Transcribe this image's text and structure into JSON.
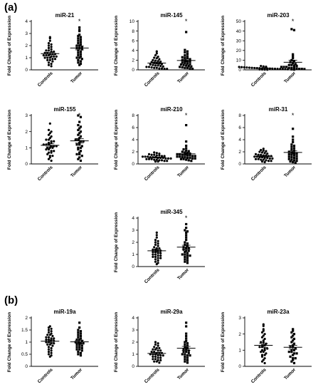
{
  "panels": [
    "(a)",
    "(b)"
  ],
  "chart_data": [
    {
      "type": "scatter",
      "title": "miR-21",
      "ylabel": "Fold Change of Expression",
      "categories": [
        "Controls",
        "Tumor"
      ],
      "ylim": [
        0,
        4
      ],
      "yticks": [
        0,
        1,
        2,
        3,
        4
      ],
      "significance": [
        "",
        "*"
      ],
      "series": [
        {
          "values": [
            2.7,
            2.6,
            2.4,
            2.2,
            2.1,
            2.0,
            1.9,
            1.8,
            1.7,
            1.6,
            1.6,
            1.5,
            1.5,
            1.4,
            1.4,
            1.3,
            1.3,
            1.3,
            1.2,
            1.2,
            1.2,
            1.1,
            1.1,
            1.1,
            1.0,
            1.0,
            1.0,
            0.9,
            0.9,
            0.8,
            0.8,
            0.7,
            0.6,
            0.5,
            0.4,
            0.3
          ]
        },
        {
          "values": [
            3.5,
            3.3,
            3.2,
            2.9,
            2.8,
            2.7,
            2.6,
            2.5,
            2.4,
            2.3,
            2.2,
            2.1,
            2.0,
            2.0,
            1.9,
            1.8,
            1.8,
            1.7,
            1.6,
            1.5,
            1.4,
            1.3,
            1.2,
            1.1,
            1.0,
            1.0,
            0.9,
            0.8,
            0.7,
            0.6,
            0.5,
            0.4
          ]
        }
      ]
    },
    {
      "type": "scatter",
      "title": "miR-145",
      "ylabel": "Fold Change of Expression",
      "categories": [
        "Controls",
        "Tumor"
      ],
      "ylim": [
        0,
        10
      ],
      "yticks": [
        0,
        2,
        4,
        6,
        8,
        10
      ],
      "significance": [
        "",
        "*"
      ],
      "series": [
        {
          "values": [
            3.8,
            3.4,
            3.0,
            2.7,
            2.5,
            2.4,
            2.2,
            2.0,
            1.9,
            1.8,
            1.7,
            1.6,
            1.5,
            1.4,
            1.3,
            1.2,
            1.1,
            1.0,
            0.9,
            0.9,
            0.8,
            0.7,
            0.6,
            0.6,
            0.5,
            0.4,
            0.4,
            0.3,
            0.3,
            0.2,
            0.2
          ]
        },
        {
          "values": [
            7.8,
            4.1,
            3.8,
            3.6,
            3.3,
            3.0,
            2.8,
            2.6,
            2.5,
            2.4,
            2.2,
            2.0,
            1.9,
            1.8,
            1.7,
            1.5,
            1.4,
            1.3,
            1.2,
            1.1,
            1.0,
            0.9,
            0.8,
            0.7,
            0.6,
            0.5,
            0.4,
            0.4,
            0.3,
            0.2
          ]
        }
      ]
    },
    {
      "type": "scatter",
      "title": "miR-203",
      "ylabel": "Fold Change of Expression",
      "categories": [
        "Controls",
        "Tumor"
      ],
      "ylim": [
        0,
        50
      ],
      "yticks": [
        0,
        10,
        20,
        30,
        40,
        50
      ],
      "significance": [
        "",
        "*"
      ],
      "series": [
        {
          "values": [
            4.0,
            3.5,
            3.2,
            3.0,
            2.8,
            2.6,
            2.4,
            2.2,
            2.0,
            1.9,
            1.8,
            1.7,
            1.6,
            1.5,
            1.4,
            1.3,
            1.2,
            1.1,
            1.0,
            0.9,
            0.8,
            0.7,
            0.6,
            0.5,
            0.4,
            0.3,
            0.2
          ]
        },
        {
          "values": [
            42,
            41,
            16,
            14,
            12,
            10,
            9,
            8,
            7,
            6,
            5,
            5,
            4,
            4,
            3,
            3,
            3,
            2,
            2,
            2,
            1.5,
            1,
            1,
            0.8,
            0.5,
            0.3
          ]
        }
      ]
    },
    {
      "type": "scatter",
      "title": "miR-155",
      "ylabel": "Fold Change of Expression",
      "categories": [
        "Controls",
        "Tumor"
      ],
      "ylim": [
        0,
        3
      ],
      "yticks": [
        0,
        1,
        2,
        3
      ],
      "significance": [
        "",
        "*"
      ],
      "series": [
        {
          "values": [
            2.5,
            2.1,
            2.0,
            1.9,
            1.8,
            1.7,
            1.6,
            1.5,
            1.5,
            1.4,
            1.4,
            1.3,
            1.3,
            1.2,
            1.2,
            1.2,
            1.1,
            1.1,
            1.1,
            1.0,
            1.0,
            1.0,
            0.9,
            0.9,
            0.8,
            0.8,
            0.7,
            0.7,
            0.6,
            0.5,
            0.5,
            0.4,
            0.3,
            0.2
          ]
        },
        {
          "values": [
            3.2,
            2.9,
            2.6,
            2.4,
            2.3,
            2.2,
            2.1,
            2.0,
            1.9,
            1.8,
            1.7,
            1.6,
            1.5,
            1.5,
            1.4,
            1.4,
            1.3,
            1.2,
            1.2,
            1.1,
            1.0,
            1.0,
            0.9,
            0.8,
            0.7,
            0.6,
            0.6,
            0.5,
            0.4,
            0.3,
            0.2
          ]
        }
      ]
    },
    {
      "type": "scatter",
      "title": "miR-210",
      "ylabel": "Fold Change of Expression",
      "categories": [
        "Controls",
        "Tumor"
      ],
      "ylim": [
        0,
        8
      ],
      "yticks": [
        0,
        2,
        4,
        6,
        8
      ],
      "significance": [
        "",
        "*"
      ],
      "series": [
        {
          "values": [
            1.9,
            1.8,
            1.7,
            1.6,
            1.5,
            1.5,
            1.4,
            1.4,
            1.3,
            1.3,
            1.2,
            1.2,
            1.2,
            1.1,
            1.1,
            1.1,
            1.0,
            1.0,
            1.0,
            0.9,
            0.9,
            0.9,
            0.8,
            0.8,
            0.8,
            0.7,
            0.7,
            0.6,
            0.6,
            0.5,
            0.5,
            0.4,
            0.4
          ]
        },
        {
          "values": [
            6.4,
            3.7,
            3.0,
            2.6,
            2.4,
            2.2,
            2.1,
            2.0,
            1.9,
            1.8,
            1.7,
            1.6,
            1.6,
            1.5,
            1.5,
            1.4,
            1.4,
            1.3,
            1.3,
            1.2,
            1.2,
            1.1,
            1.1,
            1.0,
            1.0,
            0.9,
            0.9,
            0.8,
            0.8,
            0.7,
            0.6,
            0.5
          ]
        }
      ]
    },
    {
      "type": "scatter",
      "title": "miR-31",
      "ylabel": "Fold Change of Expression",
      "categories": [
        "Controls",
        "Tumor"
      ],
      "ylim": [
        0,
        8
      ],
      "yticks": [
        0,
        2,
        4,
        6,
        8
      ],
      "significance": [
        "",
        "*"
      ],
      "series": [
        {
          "values": [
            2.5,
            2.3,
            2.2,
            2.1,
            2.0,
            1.9,
            1.8,
            1.7,
            1.6,
            1.5,
            1.5,
            1.4,
            1.4,
            1.3,
            1.3,
            1.2,
            1.2,
            1.1,
            1.1,
            1.0,
            1.0,
            0.9,
            0.9,
            0.8,
            0.8,
            0.7,
            0.7,
            0.6,
            0.5,
            0.5,
            0.4,
            0.3
          ]
        },
        {
          "values": [
            5.8,
            4.5,
            4.0,
            3.6,
            3.2,
            3.0,
            2.8,
            2.6,
            2.4,
            2.2,
            2.0,
            1.9,
            1.8,
            1.7,
            1.6,
            1.5,
            1.4,
            1.3,
            1.2,
            1.1,
            1.0,
            0.9,
            0.8,
            0.7,
            0.6,
            0.5,
            0.4,
            0.3,
            0.2
          ]
        }
      ]
    },
    {
      "type": "scatter",
      "title": "miR-345",
      "ylabel": "Fold Change of Expression",
      "categories": [
        "Controls",
        "Tumor"
      ],
      "ylim": [
        0,
        4
      ],
      "yticks": [
        0,
        1,
        2,
        3,
        4
      ],
      "significance": [
        "",
        "*"
      ],
      "series": [
        {
          "values": [
            2.8,
            2.6,
            2.4,
            2.2,
            2.1,
            2.0,
            1.9,
            1.8,
            1.7,
            1.6,
            1.5,
            1.5,
            1.4,
            1.4,
            1.3,
            1.3,
            1.2,
            1.2,
            1.1,
            1.1,
            1.0,
            1.0,
            0.9,
            0.9,
            0.8,
            0.8,
            0.7,
            0.7,
            0.6,
            0.5,
            0.4,
            0.3,
            0.2
          ]
        },
        {
          "values": [
            3.5,
            3.2,
            3.0,
            2.9,
            2.8,
            2.6,
            2.4,
            2.2,
            2.0,
            1.9,
            1.8,
            1.7,
            1.6,
            1.5,
            1.5,
            1.4,
            1.3,
            1.3,
            1.2,
            1.1,
            1.0,
            1.0,
            0.9,
            0.9,
            0.8,
            0.7,
            0.6,
            0.5,
            0.4,
            0.3
          ]
        }
      ]
    },
    {
      "type": "scatter",
      "title": "miR-19a",
      "ylabel": "Fold Change of Expression",
      "categories": [
        "Controls",
        "Tumor"
      ],
      "ylim": [
        0,
        2
      ],
      "yticks": [
        0.0,
        0.5,
        1.0,
        1.5,
        2.0
      ],
      "significance": [
        "",
        ""
      ],
      "series": [
        {
          "values": [
            1.65,
            1.6,
            1.55,
            1.5,
            1.45,
            1.4,
            1.35,
            1.3,
            1.3,
            1.25,
            1.2,
            1.2,
            1.15,
            1.15,
            1.1,
            1.1,
            1.05,
            1.05,
            1.0,
            1.0,
            0.95,
            0.95,
            0.9,
            0.9,
            0.85,
            0.8,
            0.75,
            0.7,
            0.65,
            0.6,
            0.55,
            0.5,
            0.45,
            0.4
          ]
        },
        {
          "values": [
            1.8,
            1.6,
            1.5,
            1.45,
            1.4,
            1.35,
            1.3,
            1.25,
            1.2,
            1.15,
            1.1,
            1.1,
            1.05,
            1.0,
            1.0,
            0.95,
            0.95,
            0.9,
            0.9,
            0.85,
            0.8,
            0.8,
            0.75,
            0.7,
            0.7,
            0.65,
            0.6,
            0.55,
            0.5,
            0.45
          ]
        }
      ]
    },
    {
      "type": "scatter",
      "title": "miR-29a",
      "ylabel": "Fold Change of Expression",
      "categories": [
        "Controls",
        "Tumor"
      ],
      "ylim": [
        0,
        4
      ],
      "yticks": [
        0,
        1,
        2,
        3,
        4
      ],
      "significance": [
        "",
        ""
      ],
      "series": [
        {
          "values": [
            2.0,
            1.9,
            1.8,
            1.7,
            1.6,
            1.5,
            1.5,
            1.4,
            1.4,
            1.3,
            1.3,
            1.2,
            1.2,
            1.1,
            1.1,
            1.1,
            1.0,
            1.0,
            1.0,
            0.9,
            0.9,
            0.9,
            0.8,
            0.8,
            0.7,
            0.7,
            0.6,
            0.6,
            0.5,
            0.5,
            0.4,
            0.4,
            0.3
          ]
        },
        {
          "values": [
            3.6,
            3.3,
            2.7,
            2.5,
            2.3,
            2.1,
            2.0,
            1.9,
            1.8,
            1.7,
            1.6,
            1.5,
            1.4,
            1.4,
            1.3,
            1.2,
            1.2,
            1.1,
            1.0,
            1.0,
            0.9,
            0.9,
            0.8,
            0.7,
            0.6,
            0.5,
            0.4,
            0.3
          ]
        }
      ]
    },
    {
      "type": "scatter",
      "title": "miR-23a",
      "ylabel": "Fold Change of Expression",
      "categories": [
        "Controls",
        "Tumor"
      ],
      "ylim": [
        0,
        3
      ],
      "yticks": [
        0,
        1,
        2,
        3
      ],
      "significance": [
        "",
        ""
      ],
      "series": [
        {
          "values": [
            2.6,
            2.5,
            2.3,
            2.2,
            2.1,
            2.0,
            1.9,
            1.8,
            1.7,
            1.6,
            1.5,
            1.5,
            1.4,
            1.3,
            1.3,
            1.2,
            1.2,
            1.1,
            1.1,
            1.0,
            1.0,
            0.9,
            0.9,
            0.8,
            0.7,
            0.7,
            0.6,
            0.5,
            0.4,
            0.3,
            0.2
          ]
        },
        {
          "values": [
            2.3,
            2.2,
            2.1,
            2.0,
            1.9,
            1.8,
            1.7,
            1.6,
            1.5,
            1.4,
            1.3,
            1.2,
            1.2,
            1.1,
            1.0,
            1.0,
            0.9,
            0.9,
            0.8,
            0.8,
            0.7,
            0.6,
            0.5,
            0.5,
            0.4,
            0.3,
            0.2
          ]
        }
      ]
    }
  ]
}
